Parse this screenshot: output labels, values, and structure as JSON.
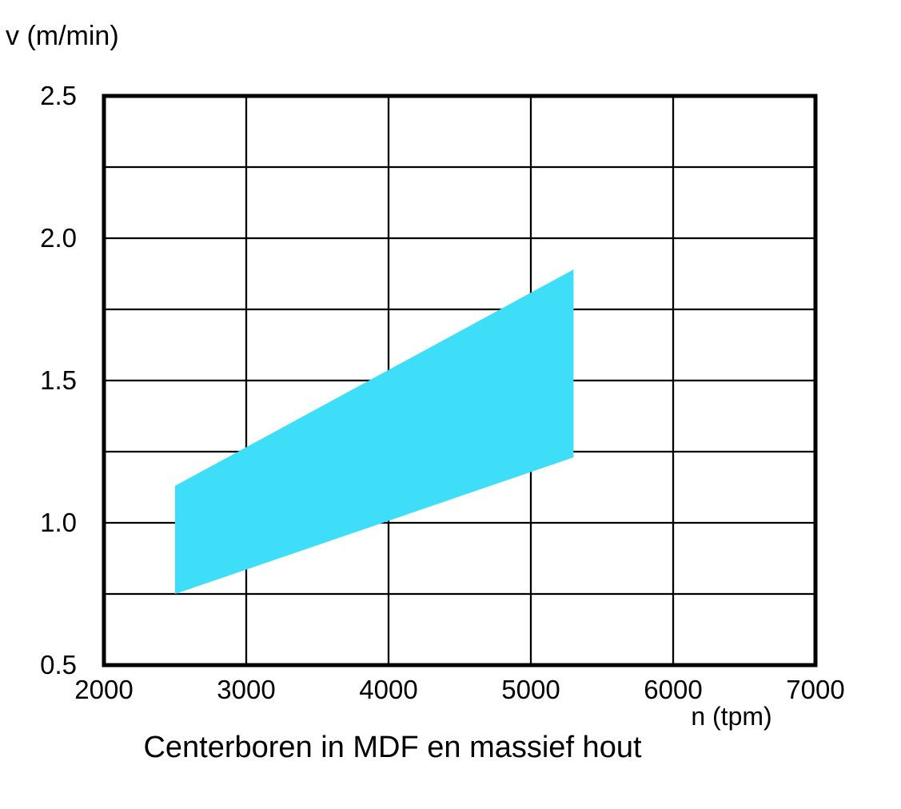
{
  "chart_data": {
    "type": "area",
    "title": "Centerboren in MDF en massief hout",
    "xlabel": "n (tpm)",
    "ylabel": "v (m/min)",
    "xlim": [
      2000,
      7000
    ],
    "ylim": [
      0.5,
      2.5
    ],
    "x_tick_values": [
      2000,
      3000,
      4000,
      5000,
      6000,
      7000
    ],
    "x_tick_labels": [
      "2000",
      "3000",
      "4000",
      "5000",
      "6000",
      "7000"
    ],
    "y_tick_values": [
      2.5,
      2.0,
      1.5,
      1.0,
      0.5
    ],
    "y_tick_labels": [
      "2.5",
      "2.0",
      "1.5",
      "1.0",
      "0.5"
    ],
    "x_grid_step": 1000,
    "y_grid_step": 0.25,
    "grid": "on",
    "legend": "none",
    "series": [
      {
        "name": "speed-range-band",
        "type": "band",
        "color": "#3EDEF9",
        "vertices_n_v": [
          [
            2500,
            0.75
          ],
          [
            2500,
            1.13
          ],
          [
            5300,
            1.89
          ],
          [
            5300,
            1.23
          ]
        ],
        "lower_edge": {
          "n": [
            2500,
            5300
          ],
          "v": [
            0.75,
            1.23
          ]
        },
        "upper_edge": {
          "n": [
            2500,
            5300
          ],
          "v": [
            1.13,
            1.89
          ]
        }
      }
    ],
    "colors": {
      "background": "#FFFFFF",
      "grid": "#000000",
      "border": "#000000",
      "text": "#000000",
      "band": "#3EDEF9"
    }
  }
}
